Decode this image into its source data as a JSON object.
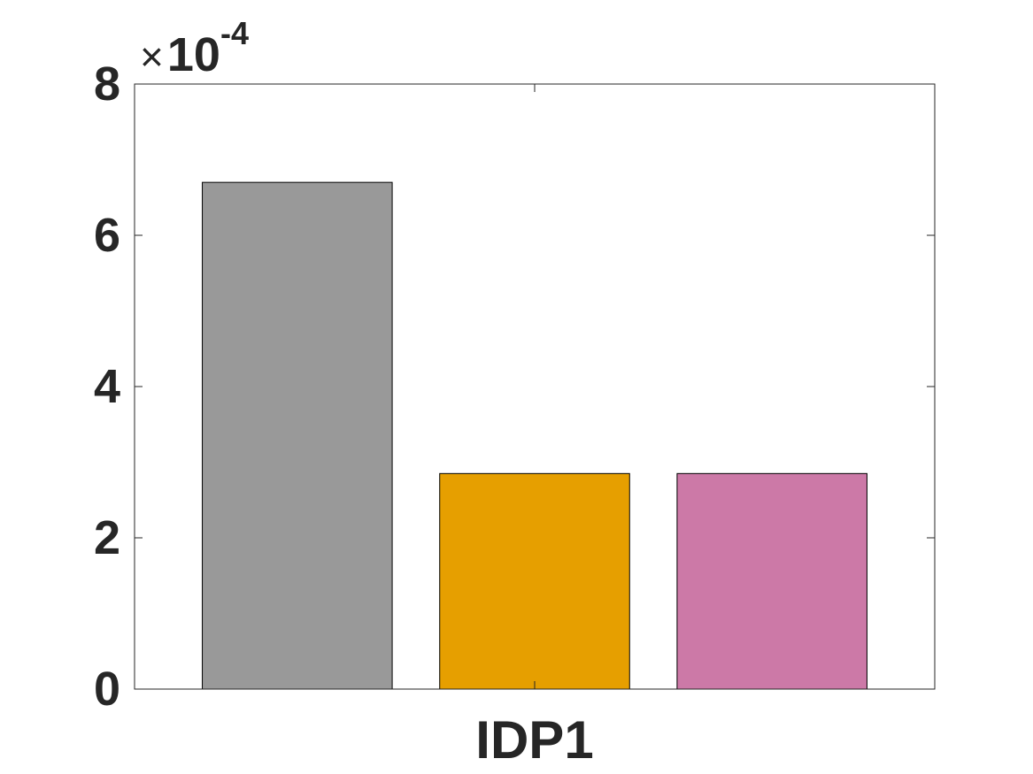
{
  "chart_data": {
    "type": "bar",
    "categories": [
      "IDP1"
    ],
    "series": [
      {
        "values": [
          0.00067
        ],
        "color": "#999999"
      },
      {
        "values": [
          0.000285
        ],
        "color": "#E69F00"
      },
      {
        "values": [
          0.000285
        ],
        "color": "#CC79A7"
      }
    ],
    "ylim": [
      0,
      0.0008
    ],
    "yticks": [
      0,
      2,
      4,
      6,
      8
    ],
    "ytick_labels": [
      "0",
      "2",
      "4",
      "6",
      "8"
    ],
    "y_multiplier": {
      "times": "×",
      "base": "10",
      "exponent": "-4"
    },
    "xlabel": "",
    "ylabel": "",
    "grid": false,
    "box": true
  }
}
